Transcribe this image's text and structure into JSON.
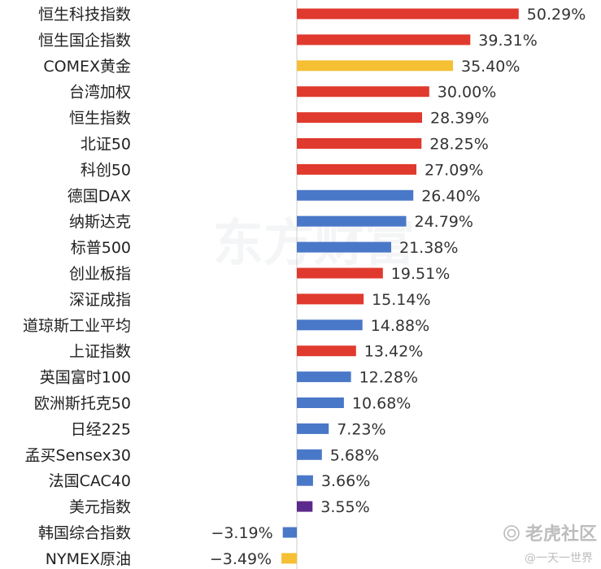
{
  "chart_data": {
    "type": "bar",
    "orientation": "horizontal",
    "categories": [
      "恒生科技指数",
      "恒生国企指数",
      "COMEX黄金",
      "台湾加权",
      "恒生指数",
      "北证50",
      "科创50",
      "德国DAX",
      "纳斯达克",
      "标普500",
      "创业板指",
      "深证成指",
      "道琼斯工业平均",
      "上证指数",
      "英国富时100",
      "欧洲斯托克50",
      "日经225",
      "孟买Sensex30",
      "法国CAC40",
      "美元指数",
      "韩国综合指数",
      "NYMEX原油"
    ],
    "values": [
      50.29,
      39.31,
      35.4,
      30.0,
      28.39,
      28.25,
      27.09,
      26.4,
      24.79,
      21.38,
      19.51,
      15.14,
      14.88,
      13.42,
      12.28,
      10.68,
      7.23,
      5.68,
      3.66,
      3.55,
      -3.19,
      -3.49
    ],
    "value_labels": [
      "50.29%",
      "39.31%",
      "35.40%",
      "30.00%",
      "28.39%",
      "28.25%",
      "27.09%",
      "26.40%",
      "24.79%",
      "21.38%",
      "19.51%",
      "15.14%",
      "14.88%",
      "13.42%",
      "12.28%",
      "10.68%",
      "7.23%",
      "5.68%",
      "3.66%",
      "3.55%",
      "−3.19%",
      "−3.49%"
    ],
    "bar_colors": [
      "#e03a2e",
      "#e03a2e",
      "#f5c033",
      "#e03a2e",
      "#e03a2e",
      "#e03a2e",
      "#e03a2e",
      "#4a78c8",
      "#4a78c8",
      "#4a78c8",
      "#e03a2e",
      "#e03a2e",
      "#4a78c8",
      "#e03a2e",
      "#4a78c8",
      "#4a78c8",
      "#4a78c8",
      "#4a78c8",
      "#4a78c8",
      "#5b2a8c",
      "#4a78c8",
      "#f5c033"
    ],
    "unit": "%",
    "title": "",
    "xlabel": "",
    "ylabel": "",
    "xlim": [
      -5,
      50.29
    ],
    "grid": false,
    "legend": "none"
  },
  "watermark": {
    "text": "东方财富"
  },
  "brand": {
    "name": "老虎社区",
    "author": "@一天一世界",
    "logo_icon": "tiger-community-logo-icon"
  }
}
